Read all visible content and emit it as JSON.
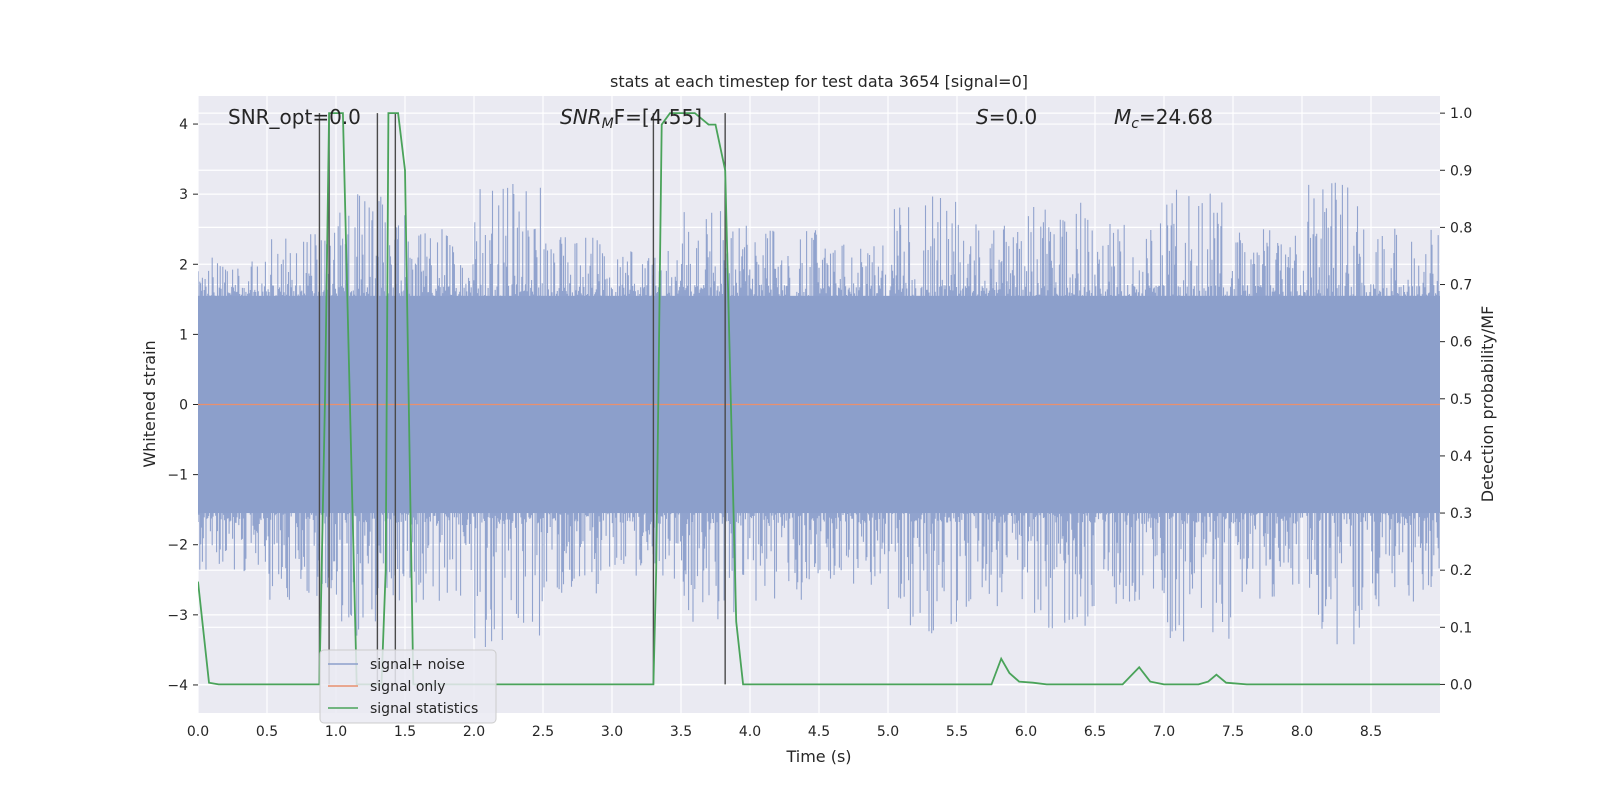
{
  "chart_data": {
    "type": "line",
    "title": "stats at each timestep for test data 3654 [signal=0]",
    "xlabel": "Time (s)",
    "ylabel": "Whitened strain",
    "y2label": "Detection probability/MF",
    "xlim": [
      0.0,
      9.0
    ],
    "ylim": [
      -4.4,
      4.4
    ],
    "y2lim": [
      -0.05,
      1.03
    ],
    "xticks": [
      "0.0",
      "0.5",
      "1.0",
      "1.5",
      "2.0",
      "2.5",
      "3.0",
      "3.5",
      "4.0",
      "4.5",
      "5.0",
      "5.5",
      "6.0",
      "6.5",
      "7.0",
      "7.5",
      "8.0",
      "8.5"
    ],
    "yticks": [
      "4",
      "3",
      "2",
      "1",
      "0",
      "−1",
      "−2",
      "−3",
      "−4"
    ],
    "y2ticks": [
      "1.0",
      "0.9",
      "0.8",
      "0.7",
      "0.6",
      "0.5",
      "0.4",
      "0.3",
      "0.2",
      "0.1",
      "0.0"
    ],
    "grid": true,
    "legend_position": "lower-left",
    "annotations": {
      "snr_opt": {
        "label": "SNR_opt=0.0"
      },
      "snr_mf": {
        "base": "SNR",
        "sub": "M",
        "tail": "F=[4.55]"
      },
      "s": {
        "base": "S",
        "tail": "=0.0"
      },
      "mc": {
        "base": "M",
        "sub": "c",
        "tail": "=24.68"
      }
    },
    "series": [
      {
        "name": "signal+ noise",
        "color": "#8c9fcb",
        "kind": "noise",
        "band": 1.55,
        "envelope": [
          2.1,
          2.5,
          3.0,
          2.6,
          3.2,
          2.4,
          2.2,
          2.8,
          2.5,
          2.3,
          3.0,
          2.6,
          2.9,
          2.7,
          3.1,
          2.5,
          3.2,
          2.6
        ]
      },
      {
        "name": "signal only",
        "color": "#e8906e",
        "kind": "flat",
        "value": 0.0
      },
      {
        "name": "signal statistics",
        "color": "#4aa35a",
        "kind": "line",
        "x": [
          0.0,
          0.08,
          0.15,
          0.5,
          0.88,
          0.92,
          0.95,
          1.05,
          1.1,
          1.15,
          1.3,
          1.33,
          1.36,
          1.38,
          1.45,
          1.5,
          1.56,
          1.6,
          2.0,
          3.0,
          3.3,
          3.32,
          3.36,
          3.42,
          3.5,
          3.6,
          3.7,
          3.75,
          3.82,
          3.9,
          3.95,
          4.0,
          4.2,
          4.5,
          5.0,
          5.5,
          5.75,
          5.82,
          5.88,
          5.95,
          6.05,
          6.15,
          6.5,
          6.7,
          6.82,
          6.9,
          7.0,
          7.25,
          7.32,
          7.38,
          7.45,
          7.6,
          8.0,
          8.5,
          9.0
        ],
        "y": [
          0.18,
          0.003,
          0.0,
          0.0,
          0.0,
          0.5,
          1.0,
          1.0,
          0.5,
          0.0,
          0.0,
          0.0,
          0.2,
          1.0,
          1.0,
          0.9,
          0.0,
          0.0,
          0.0,
          0.0,
          0.0,
          0.2,
          0.98,
          1.0,
          1.0,
          1.0,
          0.98,
          0.98,
          0.9,
          0.11,
          0.0,
          0.0,
          0.0,
          0.0,
          0.0,
          0.0,
          0.0,
          0.045,
          0.02,
          0.005,
          0.003,
          0.0,
          0.0,
          0.0,
          0.03,
          0.005,
          0.0,
          0.0,
          0.005,
          0.017,
          0.003,
          0.0,
          0.0,
          0.0,
          0.0
        ]
      }
    ],
    "vlines": [
      0.88,
      0.95,
      1.3,
      1.43,
      3.3,
      3.82
    ]
  }
}
